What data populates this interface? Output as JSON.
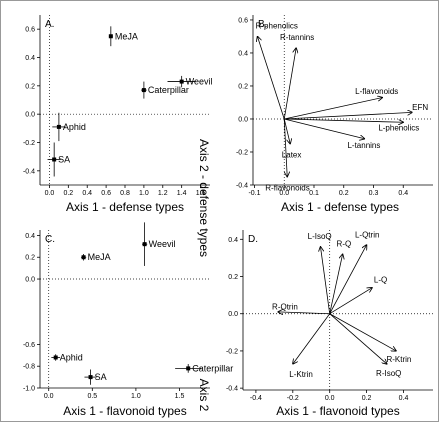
{
  "figure": {
    "y_title_top": "Axis 2 - defense types",
    "y_title_bottom": "Axis 2"
  },
  "chart_data": [
    {
      "type": "scatter",
      "panel": "A.",
      "x_title": "Axis 1 - defense types",
      "labels": [
        "MeJA",
        "Caterpillar",
        "Weevil",
        "Aphid",
        "SA"
      ],
      "x": [
        0.65,
        1.0,
        1.4,
        0.1,
        0.05
      ],
      "values": [
        0.55,
        0.17,
        0.23,
        -0.09,
        -0.32
      ],
      "xerr": [
        0.02,
        0.03,
        0.15,
        0.07,
        0.07
      ],
      "yerr": [
        0.07,
        0.06,
        0.04,
        0.1,
        0.12
      ],
      "xlim": [
        -0.1,
        1.7
      ],
      "ylim": [
        -0.5,
        0.7
      ],
      "xticks": [
        {
          "value": 0,
          "label": "0.0"
        },
        0.2,
        0.4,
        0.6,
        0.8,
        {
          "value": 1,
          "label": "1.0"
        },
        1.2,
        1.4,
        1.6
      ],
      "yticks": [
        0.6,
        0.4,
        0.2,
        {
          "value": 0,
          "label": "0.0"
        },
        -0.2,
        -0.4
      ],
      "zero_lines": true,
      "color": "#000000"
    },
    {
      "type": "biplot",
      "panel": "B.",
      "x_title": "Axis 1 - defense types",
      "labels": [
        "R-phenolics",
        "R-tannins",
        "L-flavonoids",
        "EFN",
        "L-phenolics",
        "L-tannins",
        "Latex",
        "R-flavonoids"
      ],
      "x": [
        -0.09,
        0.04,
        0.33,
        0.43,
        0.4,
        0.27,
        0.02,
        0.01
      ],
      "values": [
        0.5,
        0.43,
        0.13,
        0.04,
        -0.02,
        -0.12,
        -0.15,
        -0.35
      ],
      "xlim": [
        -0.105,
        0.5
      ],
      "ylim": [
        -0.4,
        0.63
      ],
      "xticks": [
        -0.1,
        {
          "value": 0,
          "label": "0.0"
        },
        0.1,
        0.2,
        0.3,
        0.4
      ],
      "yticks": [
        0.6,
        0.4,
        0.2,
        {
          "value": 0,
          "label": "0.0"
        },
        -0.2,
        -0.4
      ],
      "zero_lines": true,
      "color": "#000000"
    },
    {
      "type": "scatter",
      "panel": "C.",
      "x_title": "Axis 1 - flavonoid types",
      "labels": [
        "MeJA",
        "Weevil",
        "Aphid",
        "SA",
        "Caterpillar"
      ],
      "x": [
        0.4,
        1.1,
        0.08,
        0.48,
        1.6
      ],
      "values": [
        0.2,
        0.32,
        -0.72,
        -0.9,
        -0.82
      ],
      "xerr": [
        0.03,
        0.03,
        0.05,
        0.07,
        0.15
      ],
      "yerr": [
        0.03,
        0.2,
        0.03,
        0.07,
        0.04
      ],
      "xlim": [
        -0.1,
        1.85
      ],
      "ylim": [
        -1.0,
        0.45
      ],
      "xticks": [
        {
          "value": 0,
          "label": "0.0"
        },
        0.5,
        {
          "value": 1,
          "label": "1.0"
        },
        1.5
      ],
      "yticks": [
        0.4,
        0.2,
        {
          "value": 0,
          "label": "0.0"
        },
        -0.6,
        -0.8,
        {
          "value": -1,
          "label": "-1.0"
        }
      ],
      "zero_lines": true,
      "color": "#000000"
    },
    {
      "type": "biplot",
      "panel": "D.",
      "x_title": "Axis 1 - flavonoid types",
      "labels": [
        "L-IsoQ",
        "R-Q",
        "L-Qtrin",
        "L-Q",
        "R-Qtrin",
        "R-Ktrin",
        "R-IsoQ",
        "L-Ktrin"
      ],
      "x": [
        -0.05,
        0.07,
        0.2,
        0.23,
        -0.28,
        0.36,
        0.31,
        -0.2
      ],
      "values": [
        0.36,
        0.32,
        0.37,
        0.14,
        0.01,
        -0.2,
        -0.27,
        -0.27
      ],
      "xlim": [
        -0.47,
        0.56
      ],
      "ylim": [
        -0.41,
        0.45
      ],
      "xticks": [
        -0.4,
        -0.2,
        {
          "value": 0,
          "label": "0.0"
        },
        0.2,
        0.4
      ],
      "yticks": [
        0.4,
        0.2,
        {
          "value": 0,
          "label": "0.0"
        },
        -0.2,
        -0.4
      ],
      "zero_lines": true,
      "color": "#000000"
    }
  ]
}
